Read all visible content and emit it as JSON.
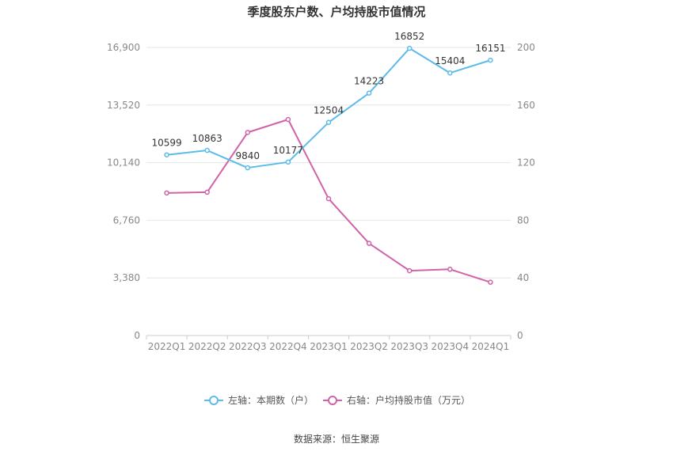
{
  "chart_data": {
    "type": "line",
    "title": "季度股东户数、户均持股市值情况",
    "categories": [
      "2022Q1",
      "2022Q2",
      "2022Q3",
      "2022Q4",
      "2023Q1",
      "2023Q2",
      "2023Q3",
      "2023Q4",
      "2024Q1"
    ],
    "y_left": {
      "min": 0,
      "max": 16900,
      "ticks": [
        "0",
        "3,380",
        "6,760",
        "10,140",
        "13,520",
        "16,900"
      ]
    },
    "y_right": {
      "min": 0,
      "max": 200,
      "ticks": [
        "0",
        "40",
        "80",
        "120",
        "160",
        "200"
      ]
    },
    "series": [
      {
        "name": "左轴：本期数（户）",
        "axis": "left",
        "color": "#5bbbea",
        "values": [
          10599,
          10863,
          9840,
          10177,
          12504,
          14223,
          16852,
          15404,
          16151
        ],
        "labels": [
          "10599",
          "10863",
          "9840",
          "10177",
          "12504",
          "14223",
          "16852",
          "15404",
          "16151"
        ]
      },
      {
        "name": "右轴：户均持股市值（万元）",
        "axis": "right",
        "color": "#d063a8",
        "values": [
          99,
          99.5,
          141,
          150,
          95,
          64,
          45,
          46,
          37
        ]
      }
    ],
    "grid": true,
    "legend": "bottom-center",
    "source": "数据来源：恒生聚源"
  }
}
